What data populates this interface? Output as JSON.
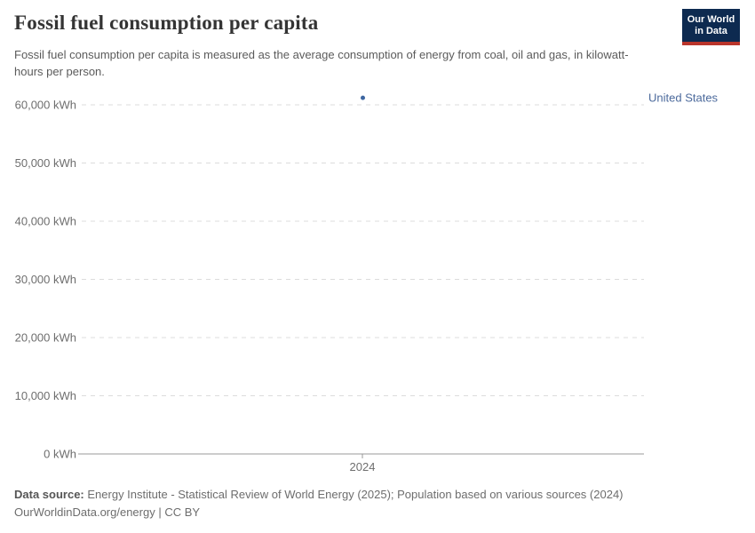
{
  "header": {
    "title": "Fossil fuel consumption per capita",
    "subtitle": "Fossil fuel consumption per capita is measured as the average consumption of energy from coal, oil and gas, in kilowatt-hours per person.",
    "logo": {
      "line1": "Our World",
      "line2": "in Data",
      "bg_color": "#0d2a50",
      "accent_color": "#b9352b"
    }
  },
  "chart_data": {
    "type": "line",
    "title": "Fossil fuel consumption per capita",
    "xlabel": "",
    "ylabel": "",
    "x": [
      2024
    ],
    "x_tick_labels": [
      "2024"
    ],
    "series": [
      {
        "name": "United States",
        "color": "#4c6a9c",
        "values": [
          61200
        ]
      }
    ],
    "y_ticks": [
      {
        "value": 0,
        "label": "0 kWh"
      },
      {
        "value": 10000,
        "label": "10,000 kWh"
      },
      {
        "value": 20000,
        "label": "20,000 kWh"
      },
      {
        "value": 30000,
        "label": "30,000 kWh"
      },
      {
        "value": 40000,
        "label": "40,000 kWh"
      },
      {
        "value": 50000,
        "label": "50,000 kWh"
      },
      {
        "value": 60000,
        "label": "60,000 kWh"
      }
    ],
    "ylim": [
      0,
      64000
    ],
    "grid": "horizontal-dashed",
    "legend_position": "right-end-of-series"
  },
  "footer": {
    "source_label": "Data source:",
    "source_text": "Energy Institute - Statistical Review of World Energy (2025); Population based on various sources (2024)",
    "link_text": "OurWorldinData.org/energy",
    "license_text": "| CC BY"
  },
  "colors": {
    "grid": "#dcdcdc",
    "axis": "#999999",
    "tick_label": "#6e6e6e",
    "series_point": "#3d66a1",
    "entity_label": "#4c6a9c"
  }
}
